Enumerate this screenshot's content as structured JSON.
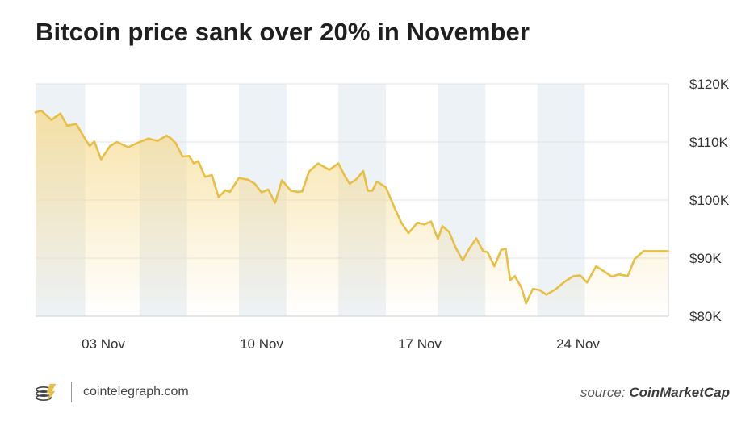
{
  "header": {
    "title": "Bitcoin price sank over 20% in November"
  },
  "footer": {
    "site": "cointelegraph.com",
    "source_prefix": "source:",
    "source_name": "CoinMarketCap",
    "logo_icon": "cointelegraph-logo-icon"
  },
  "colors": {
    "line": "#e8bf45",
    "fill_top": "#f6d98a",
    "band": "#edf2f6",
    "grid": "#e3e3e3",
    "axis_text": "#333333"
  },
  "chart_data": {
    "type": "area",
    "title": "Bitcoin price sank over 20% in November",
    "xlabel": "",
    "ylabel": "",
    "x_tick_labels": [
      "03 Nov",
      "10 Nov",
      "17 Nov",
      "24 Nov"
    ],
    "y_tick_labels": [
      "$120K",
      "$110K",
      "$100K",
      "$90K",
      "$80K"
    ],
    "ylim": [
      80000,
      120000
    ],
    "xlim": [
      0,
      28
    ],
    "y_axis_side": "right",
    "grid": true,
    "x_ticks": [
      3,
      10,
      17,
      24
    ],
    "y_ticks": [
      120000,
      110000,
      100000,
      90000,
      80000
    ],
    "bands": [
      [
        0,
        2.2
      ],
      [
        4.6,
        6.7
      ],
      [
        9,
        11.1
      ],
      [
        13.4,
        15.5
      ],
      [
        17.8,
        19.9
      ],
      [
        22.2,
        24.3
      ]
    ],
    "series": [
      {
        "name": "",
        "x": [
          0,
          0.25,
          0.7,
          1.1,
          1.4,
          1.8,
          2.2,
          2.4,
          2.6,
          2.9,
          3.3,
          3.6,
          4.1,
          4.6,
          5.0,
          5.4,
          5.8,
          6.0,
          6.2,
          6.5,
          6.8,
          7.0,
          7.2,
          7.5,
          7.8,
          8.1,
          8.4,
          8.6,
          9.0,
          9.4,
          9.7,
          10.0,
          10.3,
          10.6,
          10.9,
          11.3,
          11.6,
          11.8,
          12.1,
          12.5,
          13.0,
          13.4,
          13.7,
          13.9,
          14.2,
          14.5,
          14.7,
          14.9,
          15.1,
          15.5,
          15.9,
          16.2,
          16.5,
          16.9,
          17.2,
          17.5,
          17.8,
          18.0,
          18.3,
          18.6,
          18.9,
          19.2,
          19.5,
          19.8,
          20.0,
          20.3,
          20.6,
          20.8,
          21.0,
          21.2,
          21.5,
          21.7,
          22.0,
          22.3,
          22.6,
          23.0,
          23.4,
          23.8,
          24.1,
          24.4,
          24.8,
          25.2,
          25.5,
          25.8,
          26.2,
          26.5,
          26.9,
          27.2,
          27.5,
          27.8,
          28.0
        ],
        "y": [
          115100,
          115400,
          113800,
          114900,
          112800,
          113100,
          110500,
          109300,
          110100,
          107000,
          109300,
          110000,
          109100,
          110000,
          110600,
          110200,
          111100,
          110600,
          109800,
          107500,
          107600,
          106300,
          106700,
          104000,
          104300,
          100500,
          101700,
          101400,
          103800,
          103500,
          102800,
          101300,
          101800,
          99500,
          103400,
          101600,
          101400,
          101500,
          104900,
          106300,
          105200,
          106300,
          104000,
          102800,
          103600,
          105000,
          101600,
          101600,
          103200,
          102200,
          98500,
          96000,
          94300,
          96100,
          95800,
          96300,
          93300,
          95500,
          94500,
          91700,
          89600,
          91700,
          93400,
          91200,
          91000,
          88600,
          91400,
          91600,
          86200,
          86900,
          84900,
          82200,
          84700,
          84500,
          83700,
          84600,
          85900,
          86900,
          87000,
          85800,
          88600,
          87600,
          86800,
          87200,
          86900,
          89800,
          91200,
          91200,
          91200,
          91200,
          91200
        ]
      }
    ]
  }
}
